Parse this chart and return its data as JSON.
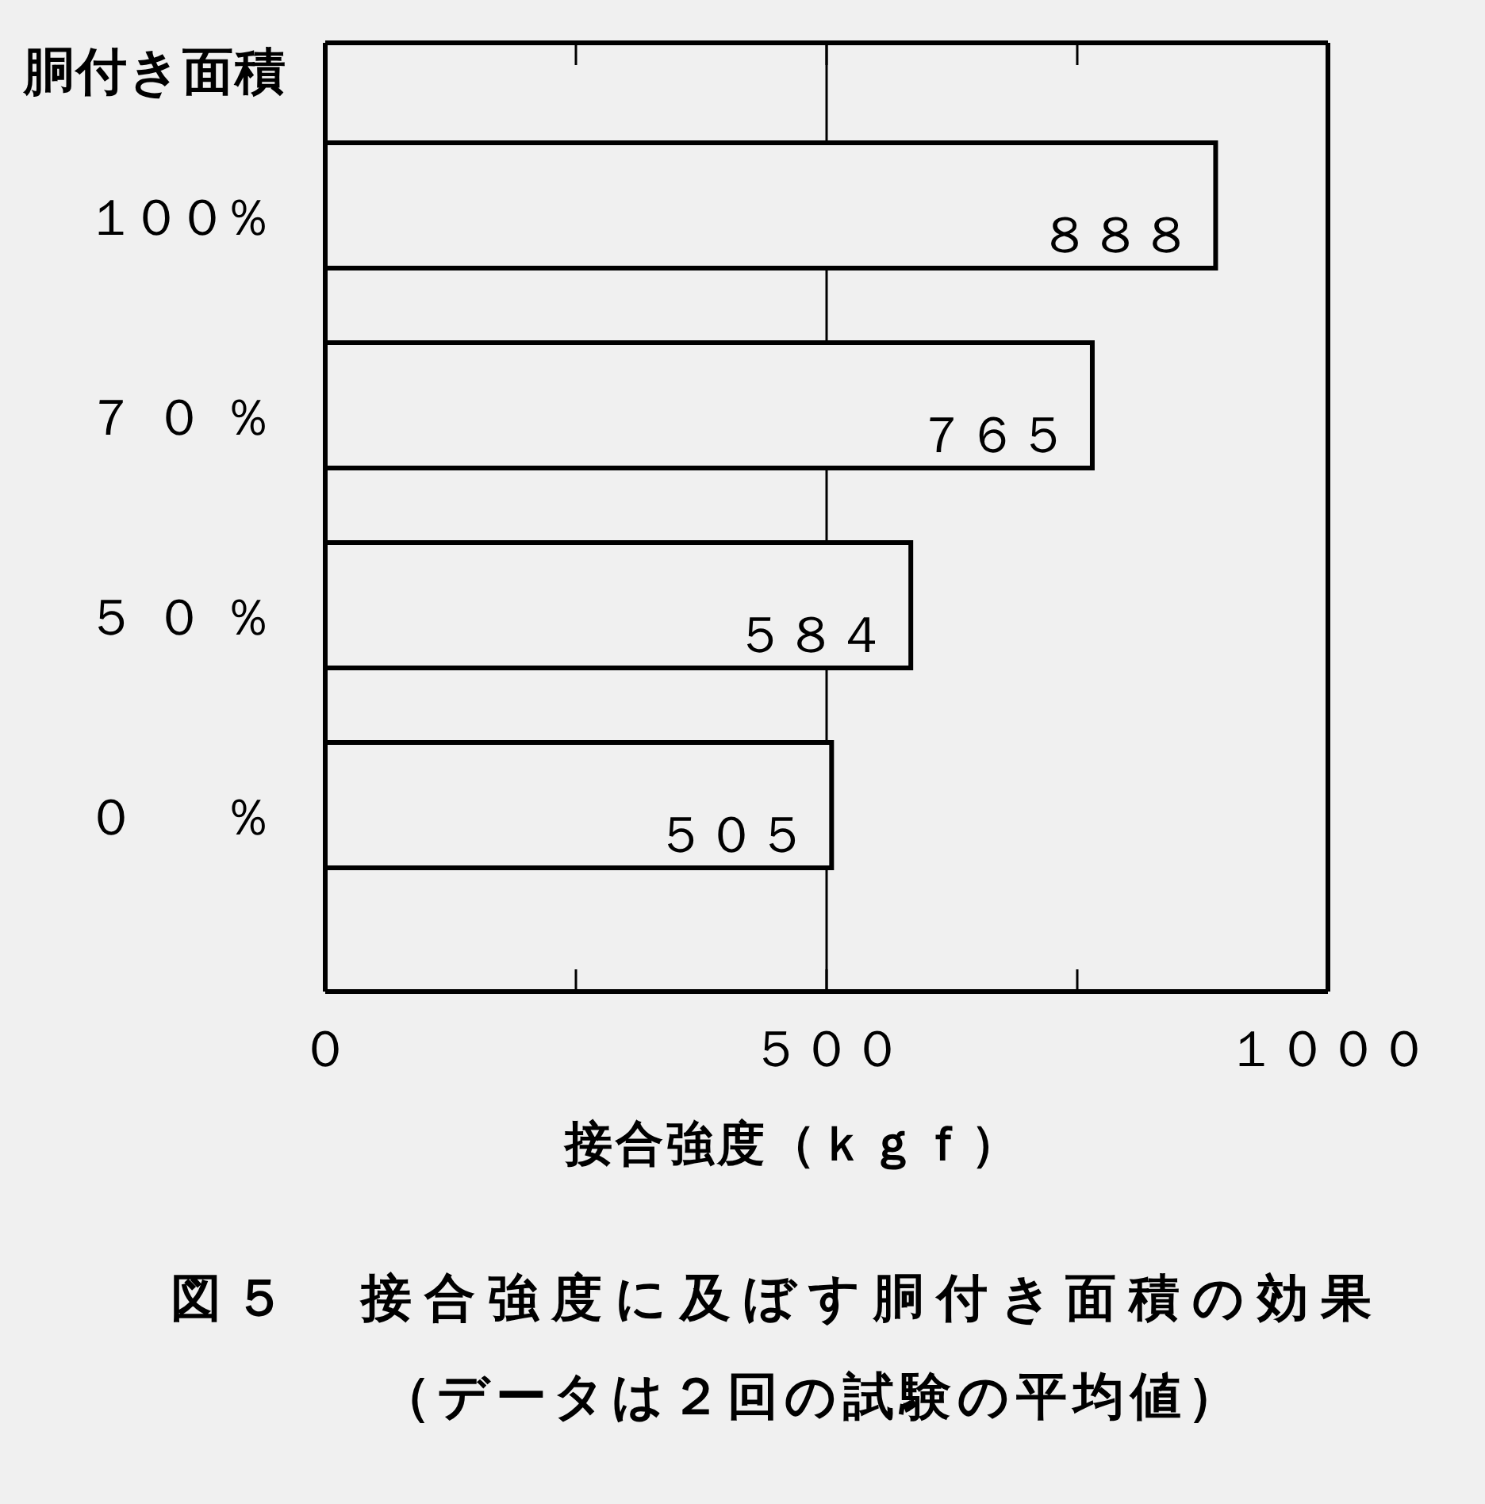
{
  "chart_data": {
    "type": "bar",
    "orientation": "horizontal",
    "title": "図５　接合強度に及ぼす胴付き面積の効果",
    "subtitle": "（データは２回の試験の平均値）",
    "xlabel": "接合強度（ｋｇｆ）",
    "ylabel": "胴付き面積",
    "categories": [
      "１００％",
      "７０％",
      "５０％",
      "０　％"
    ],
    "values": [
      888,
      765,
      584,
      505
    ],
    "value_labels": [
      "８８８",
      "７６５",
      "５８４",
      "５０５"
    ],
    "color": "#000000",
    "xlim": [
      0,
      1000
    ],
    "xticks": [
      {
        "value": 0,
        "label": "０"
      },
      {
        "value": 250,
        "label": null
      },
      {
        "value": 500,
        "label": "５００"
      },
      {
        "value": 750,
        "label": null
      },
      {
        "value": 1000,
        "label": "１０００"
      }
    ],
    "ref_lines": [
      {
        "axis": "x",
        "value": 500,
        "color": "#000000"
      }
    ]
  }
}
